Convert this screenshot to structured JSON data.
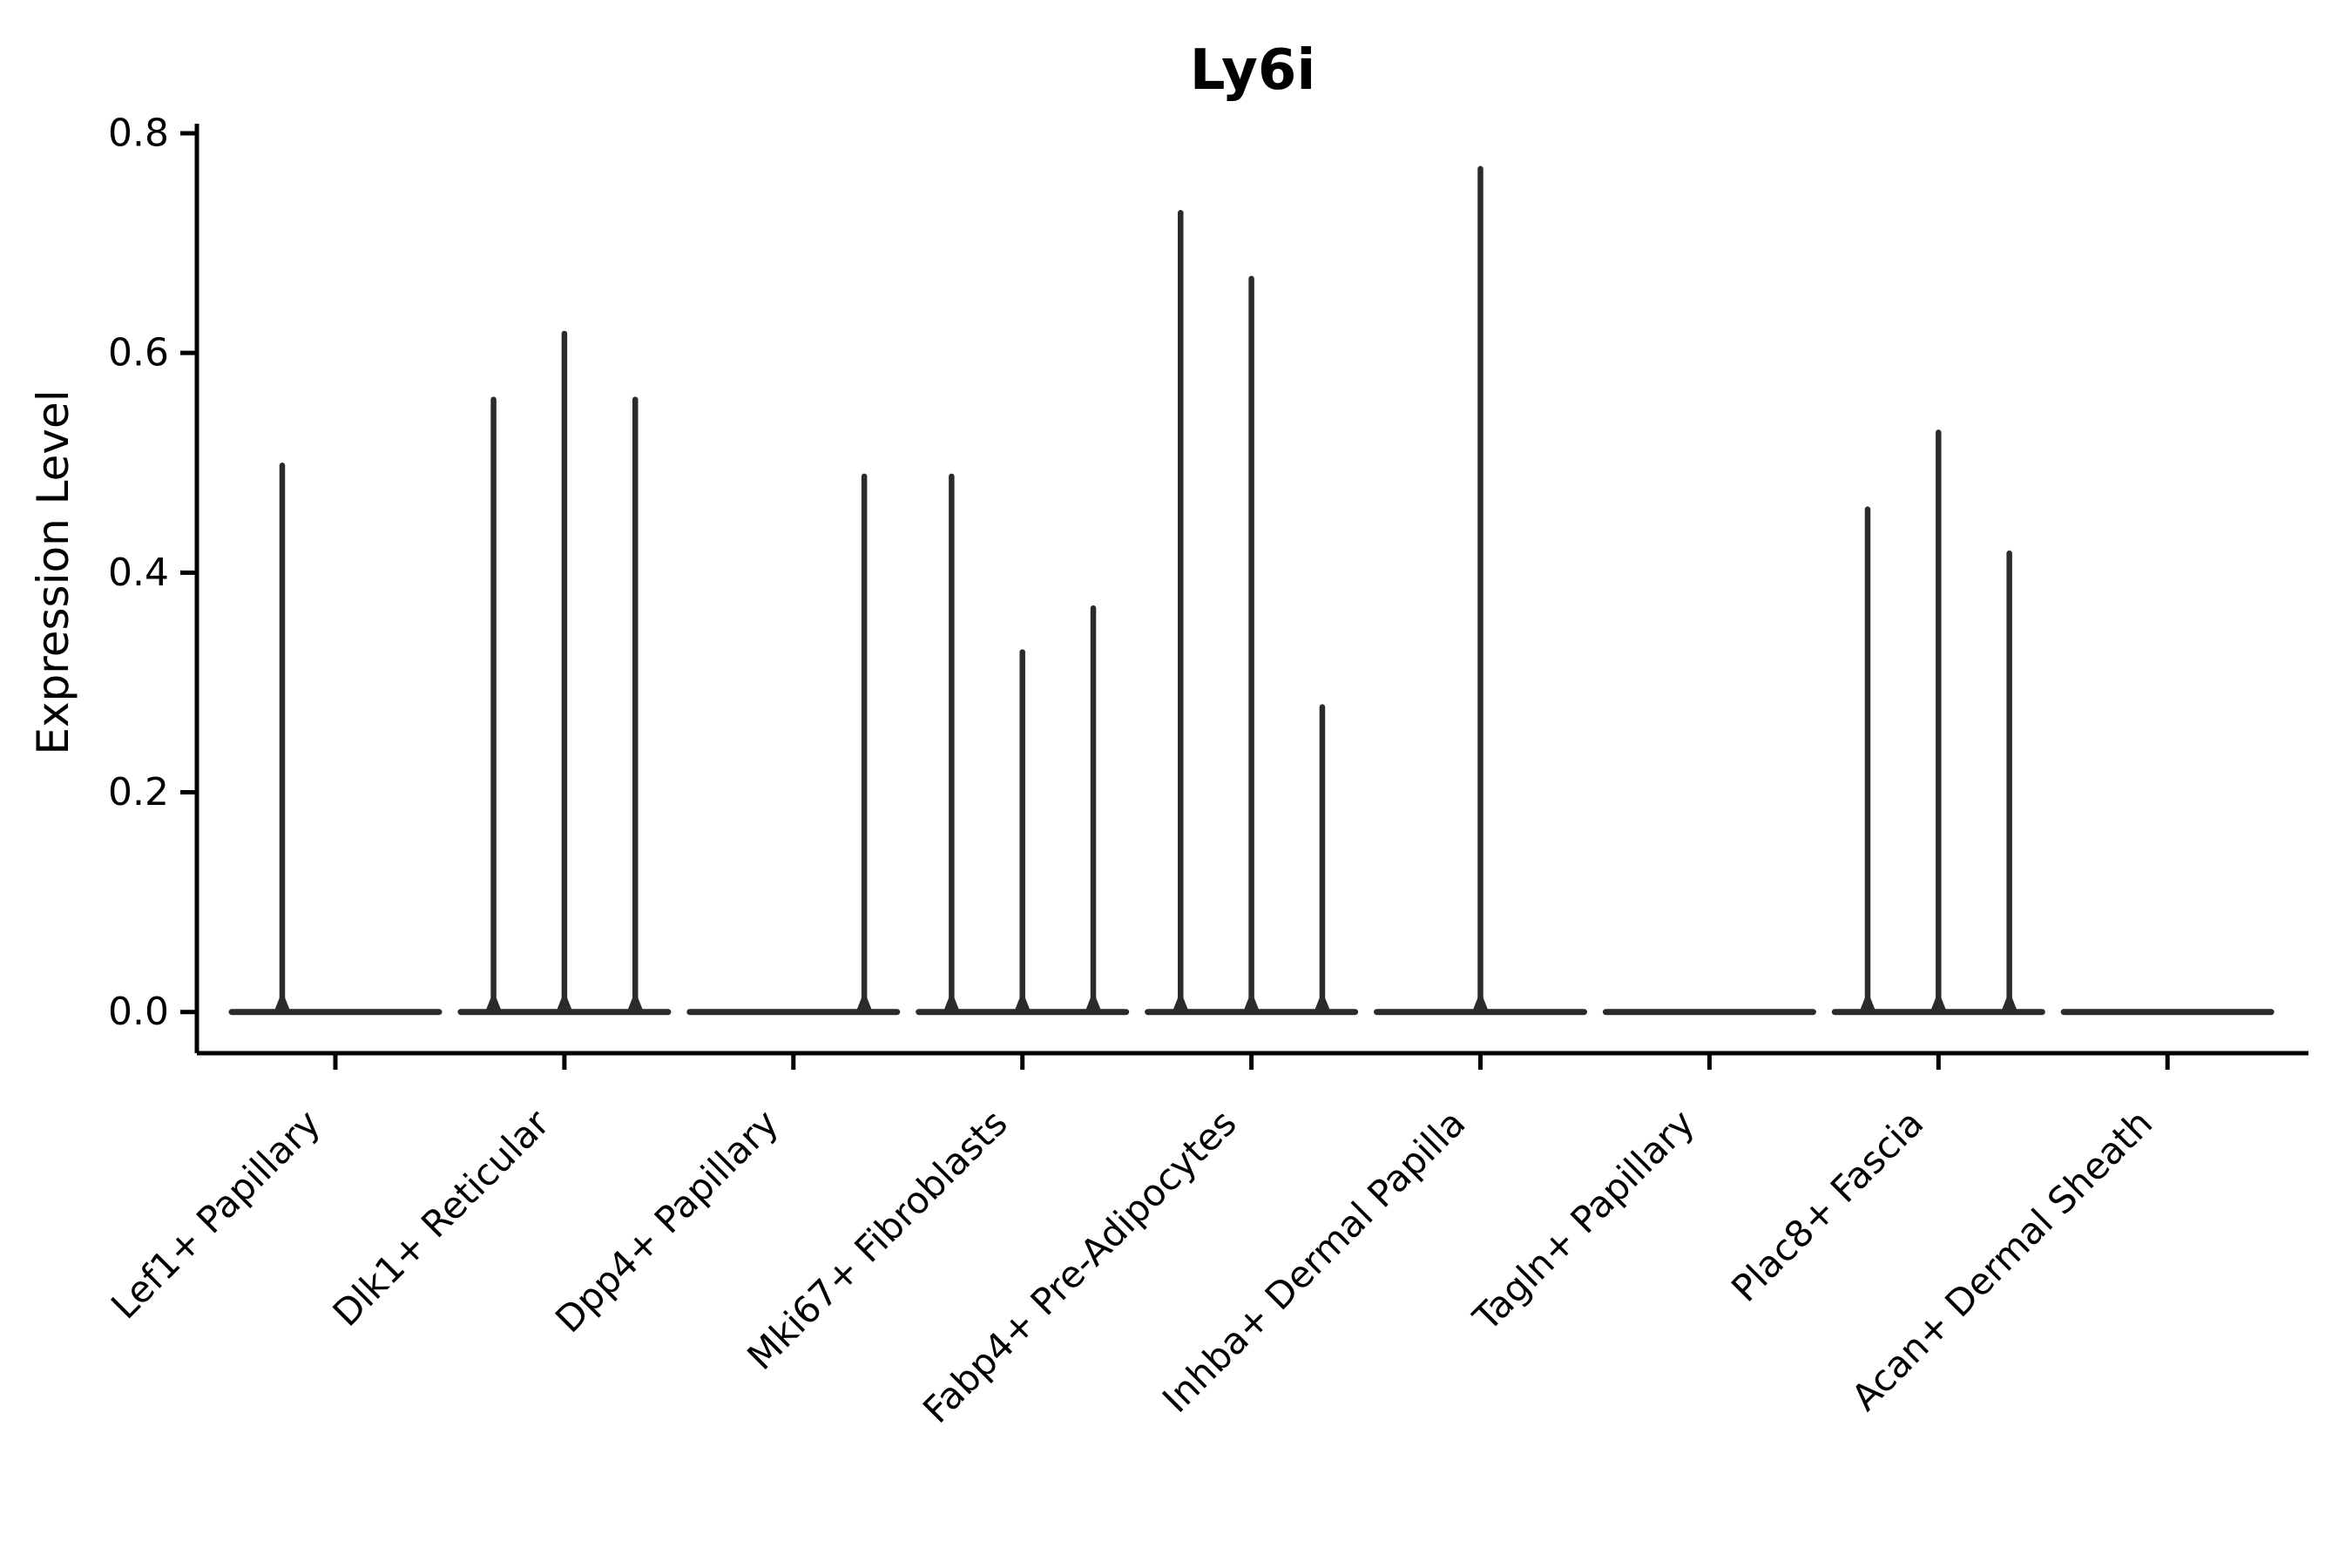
{
  "chart_data": {
    "type": "violin",
    "title": "Ly6i",
    "ylabel": "Expression Level",
    "xlabel": "",
    "ylim": [
      0,
      0.8
    ],
    "yticks": [
      "0.0",
      "0.2",
      "0.4",
      "0.6",
      "0.8"
    ],
    "grid": false,
    "legend": null,
    "categories": [
      "Lef1+ Papillary",
      "Dlk1+ Reticular",
      "Dpp4+ Papillary",
      "Mki67+ Fibroblasts",
      "Fabp4+ Pre-Adipocytes",
      "Inhba+ Dermal Papilla",
      "Tagln+ Papillary",
      "Plac8+ Fascia",
      "Acan+ Dermal Sheath"
    ],
    "violins": [
      {
        "category": "Lef1+ Papillary",
        "max_values": [
          0.5,
          0
        ]
      },
      {
        "category": "Dlk1+ Reticular",
        "max_values": [
          0.56,
          0.62,
          0.56
        ]
      },
      {
        "category": "Dpp4+ Papillary",
        "max_values": [
          0,
          0,
          0.49
        ]
      },
      {
        "category": "Mki67+ Fibroblasts",
        "max_values": [
          0.49,
          0.33,
          0.37
        ]
      },
      {
        "category": "Fabp4+ Pre-Adipocytes",
        "max_values": [
          0.73,
          0.67,
          0.28
        ]
      },
      {
        "category": "Inhba+ Dermal Papilla",
        "max_values": [
          0,
          0.77,
          0
        ]
      },
      {
        "category": "Tagln+ Papillary",
        "max_values": [
          0,
          0,
          0
        ]
      },
      {
        "category": "Plac8+ Fascia",
        "max_values": [
          0.46,
          0.53,
          0.42
        ]
      },
      {
        "category": "Acan+ Dermal Sheath",
        "max_values": [
          0,
          0,
          0
        ]
      }
    ],
    "violin_color": "#2b2b2b",
    "axis_color": "#000000",
    "background": "#ffffff"
  }
}
